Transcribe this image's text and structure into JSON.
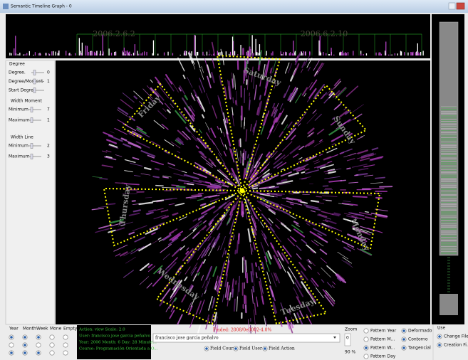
{
  "window": {
    "title": "Semantic Timeline Graph - 0"
  },
  "timeline": {
    "dates": [
      "2006.2.6.2",
      "2006.6.2.10"
    ]
  },
  "controls": {
    "degree": {
      "title": "Degree",
      "rows": [
        {
          "label": "Degree.",
          "value": 0
        },
        {
          "label": "Degree/Moment",
          "value": 1
        },
        {
          "label": "Start Degree"
        }
      ]
    },
    "width_moment": {
      "title": "Width Moment",
      "rows": [
        {
          "label": "Minimum",
          "value": 7
        },
        {
          "label": "Maximum",
          "value": 1
        }
      ]
    },
    "width_line": {
      "title": "Width Line",
      "rows": [
        {
          "label": "Minimum",
          "value": 2
        },
        {
          "label": "Maximum",
          "value": 3
        }
      ]
    }
  },
  "graph": {
    "days": [
      "Saturday",
      "Sunday",
      "Monday",
      "Tuesday",
      "Wednesday",
      "Thursday",
      "Friday"
    ]
  },
  "scale_columns": [
    "Year",
    "Month",
    "Week",
    "Mone",
    "Empty"
  ],
  "info": [
    "Action: view Scale: 2.0",
    "User: francisco jose garcia peñalvo",
    "Year: 2006 Month: 6 Day: 28 Minute...",
    "Course: Programación Orientada a O..."
  ],
  "search": {
    "status": "Finded: 2008/0e0002-4.0%",
    "user": "francisco jose garcia peñalvo",
    "fields": [
      "Field Course",
      "Field User",
      "Field Action"
    ]
  },
  "zoom": {
    "label": "Zoom",
    "value": 0,
    "percent": "90 %"
  },
  "patterns": [
    "Pattern Year",
    "Pattern M...",
    "Pattern W...",
    "Pattern Day"
  ],
  "styles": [
    "Deformado",
    "Contorno",
    "Tangencial"
  ],
  "use": {
    "title": "Use",
    "options": [
      "Change Files",
      "Creation Fi..."
    ]
  }
}
